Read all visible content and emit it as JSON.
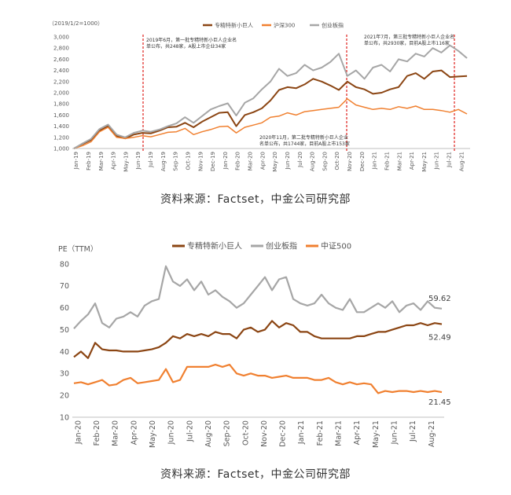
{
  "chart_data": [
    {
      "type": "line",
      "unit_label": "（2019/1/2=1000）",
      "legend_placement": "top",
      "ylim": [
        1000,
        3000
      ],
      "yticks": [
        "1,000",
        "1,200",
        "1,400",
        "1,600",
        "1,800",
        "2,000",
        "2,200",
        "2,400",
        "2,600",
        "2,800",
        "3,000"
      ],
      "x_ticks": [
        "Jan-19",
        "Feb-19",
        "Mar-19",
        "Apr-19",
        "May-19",
        "Jun-19",
        "Jul-19",
        "Aug-19",
        "Sep-19",
        "Oct-19",
        "Nov-19",
        "Dec-19",
        "Jan-20",
        "Feb-20",
        "Mar-20",
        "Apr-20",
        "May-20",
        "Jun-20",
        "Jul-20",
        "Aug-20",
        "Sep-20",
        "Oct-20",
        "Nov-20",
        "Dec-20",
        "Jan-21",
        "Feb-21",
        "Mar-21",
        "Apr-21",
        "May-21",
        "Jun-21",
        "Jul-21",
        "Aug-21"
      ],
      "series": [
        {
          "name": "专精特新小巨人",
          "color": "#8B4513",
          "width": 2,
          "values": [
            1000,
            1080,
            1150,
            1320,
            1400,
            1220,
            1180,
            1250,
            1280,
            1270,
            1320,
            1380,
            1390,
            1460,
            1380,
            1480,
            1560,
            1640,
            1650,
            1400,
            1600,
            1650,
            1720,
            1860,
            2050,
            2100,
            2080,
            2150,
            2250,
            2200,
            2130,
            2050,
            2200,
            2100,
            2060,
            1980,
            2000,
            2060,
            2100,
            2300,
            2350,
            2250,
            2380,
            2400,
            2280,
            2290,
            2300
          ]
        },
        {
          "name": "沪深300",
          "color": "#F08030",
          "width": 1.5,
          "values": [
            1000,
            1050,
            1120,
            1300,
            1380,
            1200,
            1180,
            1200,
            1230,
            1210,
            1250,
            1290,
            1300,
            1360,
            1250,
            1300,
            1340,
            1390,
            1400,
            1280,
            1380,
            1420,
            1460,
            1560,
            1580,
            1640,
            1600,
            1660,
            1680,
            1700,
            1720,
            1740,
            1890,
            1780,
            1740,
            1700,
            1720,
            1700,
            1750,
            1720,
            1760,
            1700,
            1700,
            1680,
            1650,
            1700,
            1620
          ]
        },
        {
          "name": "创业板指",
          "color": "#A6A6A6",
          "width": 2,
          "values": [
            1000,
            1090,
            1170,
            1350,
            1430,
            1250,
            1200,
            1280,
            1320,
            1300,
            1340,
            1400,
            1450,
            1560,
            1460,
            1580,
            1700,
            1760,
            1810,
            1590,
            1820,
            1900,
            2060,
            2200,
            2430,
            2300,
            2350,
            2500,
            2400,
            2450,
            2550,
            2700,
            2300,
            2400,
            2250,
            2450,
            2500,
            2380,
            2600,
            2560,
            2700,
            2650,
            2800,
            2720,
            2850,
            2750,
            2620
          ]
        }
      ],
      "annotations": [
        {
          "lines": [
            "2019年6月，第一批专精特新小巨人企业名",
            "单公布，共248家，A股上市企业34家"
          ]
        },
        {
          "lines": [
            "2020年11月，第二批专精特新小巨人企业",
            "名单公布，共1744家，目前A股上市153家"
          ]
        },
        {
          "lines": [
            "2021年7月，第三批专精特新小巨人企业名",
            "单公布，共2930家，目前A股上市116家"
          ]
        }
      ]
    },
    {
      "type": "line",
      "ylabel": "PE（TTM）",
      "legend_placement": "top",
      "ylim": [
        10,
        80
      ],
      "yticks": [
        "10",
        "20",
        "30",
        "40",
        "50",
        "60",
        "70",
        "80"
      ],
      "x_ticks": [
        "Jan-20",
        "Feb-20",
        "Mar-20",
        "Apr-20",
        "May-20",
        "Jun-20",
        "Jul-20",
        "Aug-20",
        "Sep-20",
        "Oct-20",
        "Nov-20",
        "Dec-20",
        "Jan-21",
        "Feb-21",
        "Mar-21",
        "Apr-21",
        "May-21",
        "Jun-21",
        "Jul-21",
        "Aug-21"
      ],
      "series": [
        {
          "name": "专精特新小巨人",
          "color": "#8B4513",
          "width": 2.2,
          "last_label": "52.49",
          "values": [
            37.5,
            40,
            37,
            44,
            41,
            40.5,
            40.5,
            40,
            40,
            40,
            40.5,
            41,
            42,
            44,
            47,
            46,
            48,
            47,
            48,
            47,
            49,
            48,
            48,
            46,
            50,
            51,
            49,
            50,
            54,
            51,
            53,
            52,
            49,
            49,
            47,
            46,
            46,
            46,
            46,
            46,
            47,
            47,
            48,
            49,
            49,
            50,
            51,
            52,
            52,
            53,
            52,
            53,
            52.5
          ]
        },
        {
          "name": "创业板指",
          "color": "#A6A6A6",
          "width": 2.2,
          "last_label": "59.62",
          "values": [
            50.5,
            54,
            57,
            62,
            53,
            51,
            55,
            56,
            58,
            56,
            61,
            63,
            64,
            79,
            72,
            70,
            73,
            68,
            72,
            66,
            68,
            65,
            63,
            60,
            62,
            66,
            70,
            74,
            68,
            73,
            74,
            64,
            62,
            61,
            62,
            66,
            62,
            60,
            59,
            64,
            58,
            58,
            60,
            62,
            60,
            63,
            58,
            61,
            62,
            59,
            63,
            60,
            59.6
          ]
        },
        {
          "name": "中证500",
          "color": "#F08030",
          "width": 2.2,
          "last_label": "21.45",
          "values": [
            25.5,
            26,
            25,
            26,
            27,
            24.5,
            25,
            27,
            28,
            25.5,
            26,
            26.5,
            27,
            32,
            26,
            27,
            33,
            33,
            33,
            33,
            34,
            33,
            34,
            30,
            29,
            30,
            29,
            29,
            28,
            28.5,
            29,
            28,
            28,
            28,
            27,
            27,
            28,
            26,
            25,
            26,
            25,
            25.5,
            25,
            21,
            22,
            21.5,
            22,
            22,
            21.5,
            22,
            21.5,
            22,
            21.45
          ]
        }
      ]
    }
  ],
  "captions": {
    "top": "资料来源：Factset，中金公司研究部",
    "bottom": "资料来源：Factset，中金公司研究部"
  }
}
